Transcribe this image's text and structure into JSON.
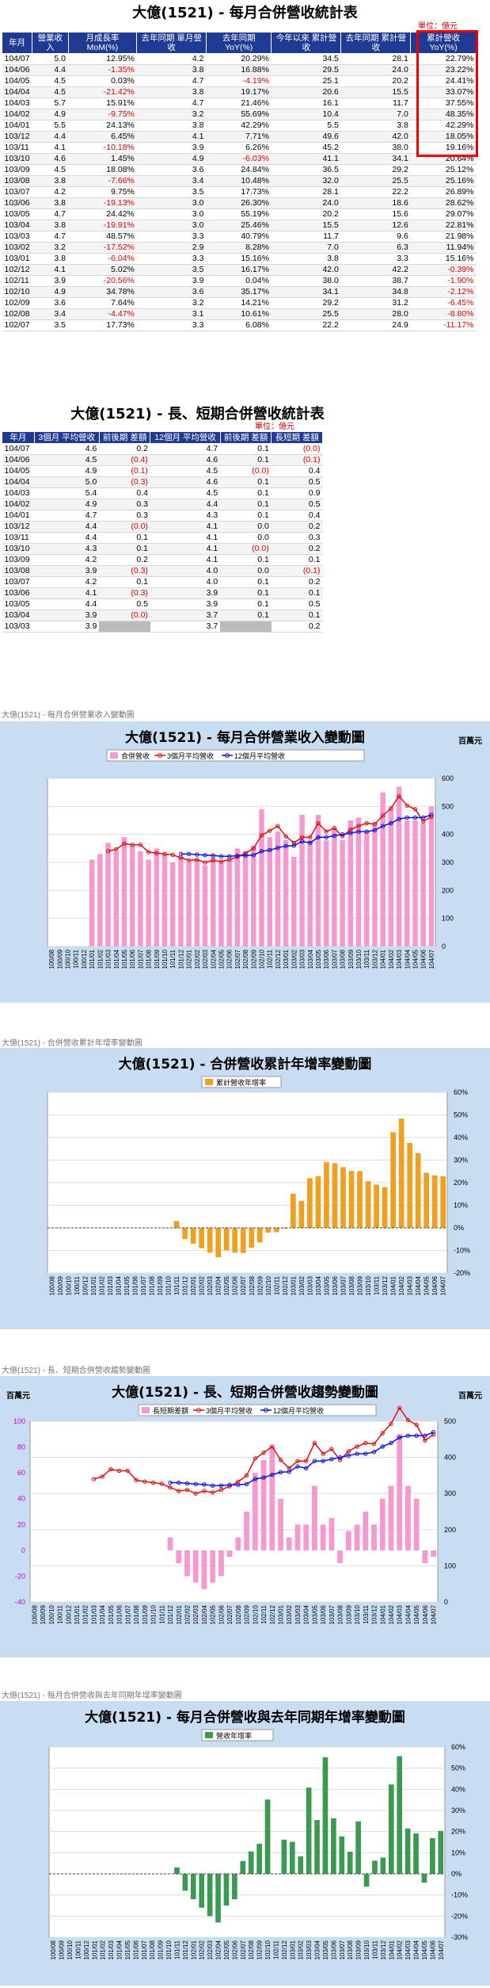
{
  "table1": {
    "title": "大億(1521) - 每月合併營收統計表",
    "unit": "單位：億元",
    "headers": [
      "年月",
      "營業收入",
      "月成長率 MoM(%)",
      "去年同期 單月營收",
      "去年同期 YoY(%)",
      "今年以來 累計營收",
      "去年同期 累計營收",
      "累計營收 YoY(%)"
    ],
    "rows": [
      [
        "104/07",
        "5.0",
        "12.95%",
        "4.2",
        "20.29%",
        "34.5",
        "28.1",
        "22.79%"
      ],
      [
        "104/06",
        "4.4",
        "-1.35%",
        "3.8",
        "16.88%",
        "29.5",
        "24.0",
        "23.22%"
      ],
      [
        "104/05",
        "4.5",
        "0.03%",
        "4.7",
        "-4.19%",
        "25.1",
        "20.2",
        "24.41%"
      ],
      [
        "104/04",
        "4.5",
        "-21.42%",
        "3.8",
        "19.17%",
        "20.6",
        "15.5",
        "33.07%"
      ],
      [
        "104/03",
        "5.7",
        "15.91%",
        "4.7",
        "21.46%",
        "16.1",
        "11.7",
        "37.55%"
      ],
      [
        "104/02",
        "4.9",
        "-9.75%",
        "3.2",
        "55.69%",
        "10.4",
        "7.0",
        "48.35%"
      ],
      [
        "104/01",
        "5.5",
        "24.13%",
        "3.8",
        "42.29%",
        "5.5",
        "3.8",
        "42.29%"
      ],
      [
        "103/12",
        "4.4",
        "6.45%",
        "4.1",
        "7.71%",
        "49.6",
        "42.0",
        "18.05%"
      ],
      [
        "103/11",
        "4.1",
        "-10.18%",
        "3.9",
        "6.26%",
        "45.2",
        "38.0",
        "19.16%"
      ],
      [
        "103/10",
        "4.6",
        "1.45%",
        "4.9",
        "-6.03%",
        "41.1",
        "34.1",
        "20.64%"
      ],
      [
        "103/09",
        "4.5",
        "18.08%",
        "3.6",
        "24.84%",
        "36.5",
        "29.2",
        "25.12%"
      ],
      [
        "103/08",
        "3.8",
        "-7.66%",
        "3.4",
        "10.48%",
        "32.0",
        "25.5",
        "25.16%"
      ],
      [
        "103/07",
        "4.2",
        "9.75%",
        "3.5",
        "17.73%",
        "28.1",
        "22.2",
        "26.89%"
      ],
      [
        "103/06",
        "3.8",
        "-19.13%",
        "3.0",
        "26.30%",
        "24.0",
        "18.6",
        "28.62%"
      ],
      [
        "103/05",
        "4.7",
        "24.42%",
        "3.0",
        "55.19%",
        "20.2",
        "15.6",
        "29.07%"
      ],
      [
        "103/04",
        "3.8",
        "-19.91%",
        "3.0",
        "25.46%",
        "15.5",
        "12.6",
        "22.81%"
      ],
      [
        "103/03",
        "4.7",
        "48.57%",
        "3.3",
        "40.79%",
        "11.7",
        "9.6",
        "21.98%"
      ],
      [
        "103/02",
        "3.2",
        "-17.52%",
        "2.9",
        "8.28%",
        "7.0",
        "6.3",
        "11.94%"
      ],
      [
        "103/01",
        "3.8",
        "-6.04%",
        "3.3",
        "15.16%",
        "3.8",
        "3.3",
        "15.16%"
      ],
      [
        "102/12",
        "4.1",
        "5.02%",
        "3.5",
        "16.17%",
        "42.0",
        "42.2",
        "-0.39%"
      ],
      [
        "102/11",
        "3.9",
        "-20.56%",
        "3.9",
        "0.04%",
        "38.0",
        "38.7",
        "-1.90%"
      ],
      [
        "102/10",
        "4.9",
        "34.78%",
        "3.6",
        "35.17%",
        "34.1",
        "34.8",
        "-2.12%"
      ],
      [
        "102/09",
        "3.6",
        "7.64%",
        "3.2",
        "14.21%",
        "29.2",
        "31.2",
        "-6.45%"
      ],
      [
        "102/08",
        "3.4",
        "-4.47%",
        "3.1",
        "10.61%",
        "25.5",
        "28.0",
        "-8.80%"
      ],
      [
        "102/07",
        "3.5",
        "17.73%",
        "3.3",
        "6.08%",
        "22.2",
        "24.9",
        "-11.17%"
      ]
    ]
  },
  "table2": {
    "title": "大億(1521) - 長、短期合併營收統計表",
    "unit": "單位：億元",
    "headers": [
      "年月",
      "3個月 平均營收",
      "前後期 差額",
      "12個月 平均營收",
      "前後期 差額",
      "長短期 差額"
    ],
    "rows": [
      [
        "104/07",
        "4.6",
        "0.2",
        "4.7",
        "0.1",
        "(0.0)"
      ],
      [
        "104/06",
        "4.5",
        "(0.4)",
        "4.6",
        "0.1",
        "(0.1)"
      ],
      [
        "104/05",
        "4.9",
        "(0.1)",
        "4.5",
        "(0.0)",
        "0.4"
      ],
      [
        "104/04",
        "5.0",
        "(0.3)",
        "4.6",
        "0.1",
        "0.5"
      ],
      [
        "104/03",
        "5.4",
        "0.4",
        "4.5",
        "0.1",
        "0.9"
      ],
      [
        "104/02",
        "4.9",
        "0.3",
        "4.4",
        "0.1",
        "0.5"
      ],
      [
        "104/01",
        "4.7",
        "0.3",
        "4.3",
        "0.1",
        "0.4"
      ],
      [
        "103/12",
        "4.4",
        "(0.0)",
        "4.1",
        "0.0",
        "0.2"
      ],
      [
        "103/11",
        "4.4",
        "0.1",
        "4.1",
        "0.0",
        "0.3"
      ],
      [
        "103/10",
        "4.3",
        "0.1",
        "4.1",
        "(0.0)",
        "0.2"
      ],
      [
        "103/09",
        "4.2",
        "0.2",
        "4.1",
        "0.1",
        "0.1"
      ],
      [
        "103/08",
        "3.9",
        "(0.3)",
        "4.0",
        "0.0",
        "(0.1)"
      ],
      [
        "103/07",
        "4.2",
        "0.1",
        "4.0",
        "0.1",
        "0.2"
      ],
      [
        "103/06",
        "4.1",
        "(0.3)",
        "3.9",
        "0.1",
        "0.1"
      ],
      [
        "103/05",
        "4.4",
        "0.5",
        "3.9",
        "0.1",
        "0.5"
      ],
      [
        "103/04",
        "3.9",
        "(0.0)",
        "3.7",
        "0.1",
        "0.1"
      ],
      [
        "103/03",
        "3.9",
        "",
        "3.7",
        "",
        "0.2"
      ]
    ]
  },
  "chart_data": [
    {
      "type": "bar",
      "caption": "大億(1521) - 每月合併營業收入變動圖",
      "title": "大億(1521) - 每月合併營業收入變動圖",
      "unit_label": "百萬元",
      "legend": [
        "合併營收",
        "3個月平均營收",
        "12個月平均營收"
      ],
      "categories": [
        "100/08",
        "100/09",
        "100/10",
        "100/11",
        "100/12",
        "101/01",
        "101/02",
        "101/03",
        "101/04",
        "101/05",
        "101/06",
        "101/07",
        "101/08",
        "101/09",
        "101/10",
        "101/11",
        "101/12",
        "102/01",
        "102/02",
        "102/03",
        "102/04",
        "102/05",
        "102/06",
        "102/07",
        "102/08",
        "102/09",
        "102/10",
        "102/11",
        "102/12",
        "103/01",
        "103/02",
        "103/03",
        "103/04",
        "103/05",
        "103/06",
        "103/07",
        "103/08",
        "103/09",
        "103/10",
        "103/11",
        "103/12",
        "104/01",
        "104/02",
        "104/03",
        "104/04",
        "104/05",
        "104/06",
        "104/07"
      ],
      "series": [
        {
          "name": "合併營收",
          "values": [
            0,
            0,
            0,
            0,
            0,
            310,
            330,
            370,
            340,
            390,
            360,
            340,
            310,
            350,
            330,
            300,
            320,
            300,
            310,
            290,
            320,
            300,
            310,
            350,
            340,
            360,
            490,
            390,
            410,
            380,
            320,
            470,
            380,
            470,
            380,
            420,
            380,
            450,
            460,
            410,
            440,
            550,
            490,
            570,
            450,
            450,
            440,
            500
          ]
        },
        {
          "name": "3個月平均營收",
          "values": [
            null,
            null,
            null,
            null,
            null,
            null,
            null,
            340,
            347,
            367,
            363,
            363,
            337,
            333,
            330,
            327,
            317,
            307,
            310,
            300,
            307,
            303,
            310,
            320,
            333,
            350,
            397,
            413,
            430,
            393,
            370,
            390,
            390,
            440,
            410,
            423,
            393,
            417,
            430,
            440,
            437,
            467,
            493,
            537,
            503,
            490,
            447,
            463
          ]
        },
        {
          "name": "12個月平均營收",
          "values": [
            null,
            null,
            null,
            null,
            null,
            null,
            null,
            null,
            null,
            null,
            null,
            null,
            null,
            null,
            null,
            null,
            330,
            330,
            328,
            326,
            325,
            322,
            322,
            324,
            324,
            326,
            340,
            344,
            352,
            359,
            360,
            375,
            370,
            390,
            390,
            395,
            400,
            405,
            410,
            410,
            415,
            430,
            440,
            455,
            460,
            460,
            460,
            470
          ]
        }
      ],
      "ylim": [
        0,
        600
      ],
      "yticks": [
        "0",
        "100",
        "200",
        "300",
        "400",
        "500",
        "600"
      ]
    },
    {
      "type": "bar",
      "caption": "大億(1521) - 合併營收累計年增率變動圖",
      "title": "大億(1521) - 合併營收累計年增率變動圖",
      "legend": [
        "累計營收年增率"
      ],
      "categories": [
        "100/08",
        "100/09",
        "100/10",
        "100/11",
        "100/12",
        "101/01",
        "101/02",
        "101/03",
        "101/04",
        "101/05",
        "101/06",
        "101/07",
        "101/08",
        "101/09",
        "101/10",
        "101/11",
        "101/12",
        "102/01",
        "102/02",
        "102/03",
        "102/04",
        "102/05",
        "102/06",
        "102/07",
        "102/08",
        "102/09",
        "102/10",
        "102/11",
        "102/12",
        "103/01",
        "103/02",
        "103/03",
        "103/04",
        "103/05",
        "103/06",
        "103/07",
        "103/08",
        "103/09",
        "103/10",
        "103/11",
        "103/12",
        "104/01",
        "104/02",
        "104/03",
        "104/04",
        "104/05",
        "104/06",
        "104/07"
      ],
      "values": [
        0,
        0,
        0,
        0,
        0,
        0,
        0,
        0,
        0,
        0,
        0,
        0,
        0,
        0,
        0,
        3,
        -5,
        -7,
        -9,
        -11,
        -13,
        -10,
        -11,
        -11.17,
        -8.8,
        -6.45,
        -2.12,
        -1.9,
        -0.39,
        15.16,
        11.94,
        21.98,
        22.81,
        29.07,
        28.62,
        26.89,
        25.16,
        25.12,
        20.64,
        19.16,
        18.05,
        42.29,
        48.35,
        37.55,
        33.07,
        24.41,
        23.22,
        22.79
      ],
      "ylim": [
        -20,
        60
      ],
      "yticks": [
        "60%",
        "50%",
        "40%",
        "30%",
        "20%",
        "10%",
        "0%",
        "-10%",
        "-20%"
      ]
    },
    {
      "type": "bar",
      "caption": "大億(1521) - 長、短期合併營收趨勢變動圖",
      "title": "大億(1521) - 長、短期合併營收趨勢變動圖",
      "unit_label": "百萬元",
      "legend": [
        "長短期差額",
        "3個月平均營收",
        "12個月平均營收"
      ],
      "categories": [
        "100/08",
        "100/09",
        "100/10",
        "100/11",
        "100/12",
        "101/01",
        "101/02",
        "101/03",
        "101/04",
        "101/05",
        "101/06",
        "101/07",
        "101/08",
        "101/09",
        "101/10",
        "101/11",
        "101/12",
        "102/01",
        "102/02",
        "102/03",
        "102/04",
        "102/05",
        "102/06",
        "102/07",
        "102/08",
        "102/09",
        "102/10",
        "102/11",
        "102/12",
        "103/01",
        "103/02",
        "103/03",
        "103/04",
        "103/05",
        "103/06",
        "103/07",
        "103/08",
        "103/09",
        "103/10",
        "103/11",
        "103/12",
        "104/01",
        "104/02",
        "104/03",
        "104/04",
        "104/05",
        "104/06",
        "104/07"
      ],
      "series": [
        {
          "name": "長短期差額",
          "values": [
            0,
            0,
            0,
            0,
            0,
            0,
            0,
            0,
            0,
            0,
            0,
            0,
            0,
            0,
            0,
            0,
            10,
            -10,
            -20,
            -25,
            -30,
            -25,
            -20,
            -5,
            10,
            30,
            60,
            70,
            80,
            40,
            10,
            20,
            20,
            50,
            20,
            25,
            -10,
            15,
            20,
            30,
            20,
            40,
            50,
            90,
            50,
            40,
            -10,
            -5
          ]
        },
        {
          "name": "3個月平均營收",
          "values": [
            null,
            null,
            null,
            null,
            null,
            null,
            null,
            340,
            347,
            367,
            363,
            363,
            337,
            333,
            330,
            327,
            317,
            307,
            310,
            300,
            307,
            303,
            310,
            320,
            333,
            350,
            397,
            413,
            430,
            393,
            370,
            390,
            390,
            440,
            410,
            423,
            393,
            417,
            430,
            440,
            437,
            467,
            493,
            537,
            503,
            490,
            447,
            463
          ]
        },
        {
          "name": "12個月平均營收",
          "values": [
            null,
            null,
            null,
            null,
            null,
            null,
            null,
            null,
            null,
            null,
            null,
            null,
            null,
            null,
            null,
            null,
            330,
            330,
            328,
            326,
            325,
            322,
            322,
            324,
            324,
            326,
            340,
            344,
            352,
            359,
            360,
            375,
            370,
            390,
            390,
            395,
            400,
            405,
            410,
            410,
            415,
            430,
            440,
            455,
            460,
            460,
            460,
            470
          ]
        }
      ],
      "ylim_left": [
        -40,
        100
      ],
      "ylim_right": [
        0,
        500
      ],
      "yticks_left": [
        "100",
        "80",
        "60",
        "40",
        "20",
        "0",
        "-20",
        "-40"
      ],
      "yticks_right": [
        "500",
        "400",
        "300",
        "200",
        "100",
        "0"
      ]
    },
    {
      "type": "bar",
      "caption": "大億(1521) - 每月合併營收與去年同期年增率變動圖",
      "title": "大億(1521) - 每月合併營收與去年同期年增率變動圖",
      "legend": [
        "營收年增率"
      ],
      "categories": [
        "100/08",
        "100/09",
        "100/10",
        "100/11",
        "100/12",
        "101/01",
        "101/02",
        "101/03",
        "101/04",
        "101/05",
        "101/06",
        "101/07",
        "101/08",
        "101/09",
        "101/10",
        "101/11",
        "101/12",
        "102/01",
        "102/02",
        "102/03",
        "102/04",
        "102/05",
        "102/06",
        "102/07",
        "102/08",
        "102/09",
        "102/10",
        "102/11",
        "102/12",
        "103/01",
        "103/02",
        "103/03",
        "103/04",
        "103/05",
        "103/06",
        "103/07",
        "103/08",
        "103/09",
        "103/10",
        "103/11",
        "103/12",
        "104/01",
        "104/02",
        "104/03",
        "104/04",
        "104/05",
        "104/06",
        "104/07"
      ],
      "values": [
        0,
        0,
        0,
        0,
        0,
        0,
        0,
        0,
        0,
        0,
        0,
        0,
        0,
        0,
        0,
        3,
        -8,
        -12,
        -16,
        -20,
        -23,
        -15,
        -12,
        6.08,
        10.61,
        14.21,
        35.17,
        0.04,
        16.17,
        15.16,
        8.28,
        40.79,
        25.46,
        55.19,
        26.3,
        17.73,
        10.48,
        24.84,
        -6.03,
        6.26,
        7.71,
        42.29,
        55.69,
        21.46,
        19.17,
        -4.19,
        16.88,
        20.29
      ],
      "ylim": [
        -30,
        60
      ],
      "yticks": [
        "60%",
        "50%",
        "40%",
        "30%",
        "20%",
        "10%",
        "0%",
        "-10%",
        "-20%",
        "-30%"
      ]
    }
  ]
}
